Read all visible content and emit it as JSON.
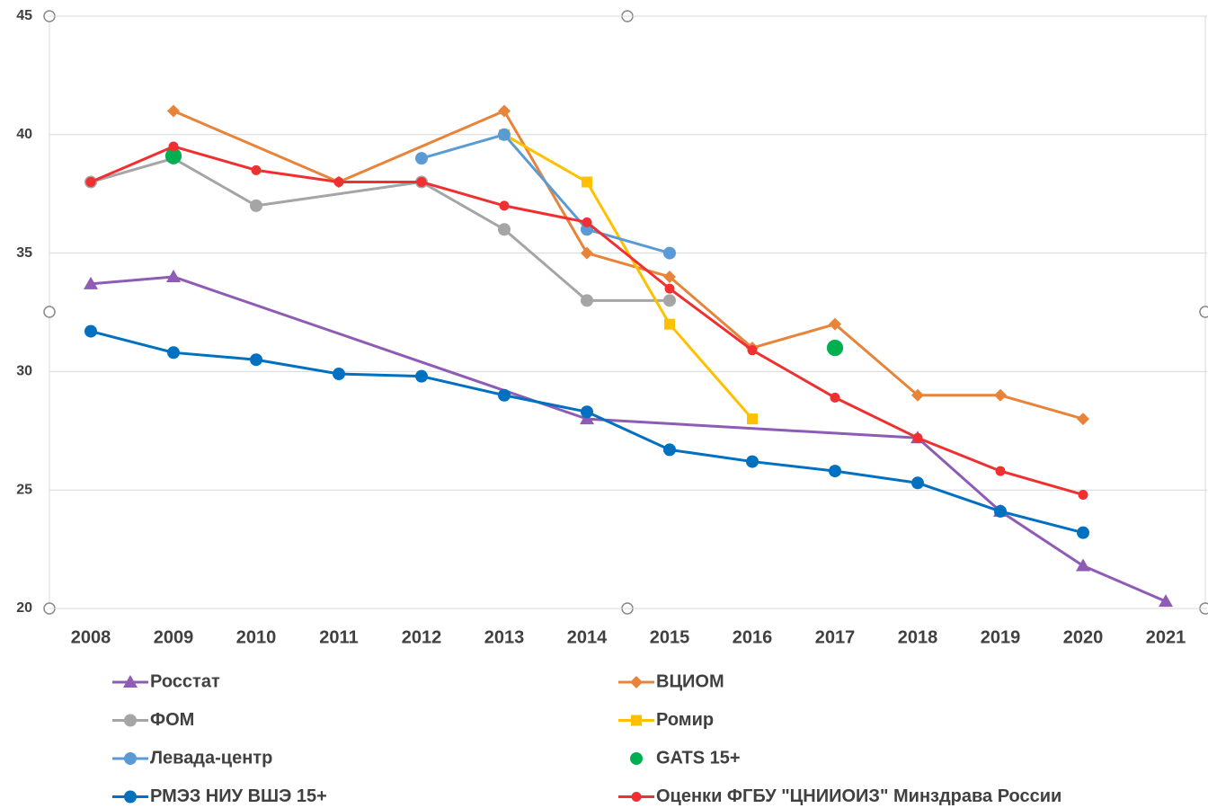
{
  "chart_data": {
    "type": "line",
    "categories": [
      "2008",
      "2009",
      "2010",
      "2011",
      "2012",
      "2013",
      "2014",
      "2015",
      "2016",
      "2017",
      "2018",
      "2019",
      "2020",
      "2021"
    ],
    "ylim": [
      20,
      45
    ],
    "yticks": [
      20,
      25,
      30,
      35,
      40,
      45
    ],
    "grid": true,
    "span_gaps": true,
    "series": [
      {
        "name": "Росстат",
        "color": "#8e5bb5",
        "marker": "triangle",
        "values": [
          33.7,
          34.0,
          null,
          null,
          null,
          null,
          28.0,
          null,
          null,
          null,
          27.2,
          24.1,
          21.8,
          20.3
        ]
      },
      {
        "name": "ВЦИОМ",
        "color": "#e8833a",
        "marker": "diamond",
        "values": [
          null,
          41,
          null,
          38,
          null,
          41,
          35,
          34,
          31,
          32,
          29,
          29,
          28,
          null
        ]
      },
      {
        "name": "ФОМ",
        "color": "#a5a5a5",
        "marker": "circle",
        "values": [
          38,
          39,
          37,
          null,
          38,
          36,
          33,
          33,
          null,
          null,
          null,
          null,
          null,
          null
        ]
      },
      {
        "name": "Ромир",
        "color": "#ffc000",
        "marker": "square",
        "values": [
          null,
          null,
          null,
          null,
          null,
          40,
          38,
          32,
          28,
          null,
          null,
          null,
          null,
          null
        ]
      },
      {
        "name": "Левада-центр",
        "color": "#5b9bd5",
        "marker": "circle",
        "values": [
          null,
          null,
          null,
          null,
          39,
          40,
          36,
          35,
          null,
          null,
          null,
          null,
          null,
          null
        ]
      },
      {
        "name": "GATS 15+",
        "color": "#00b050",
        "marker": "circle",
        "line": false,
        "values": [
          null,
          39.1,
          null,
          null,
          null,
          null,
          null,
          null,
          null,
          31,
          null,
          null,
          null,
          null
        ]
      },
      {
        "name": "РМЭЗ НИУ ВШЭ 15+",
        "color": "#0070c0",
        "marker": "circle",
        "values": [
          31.7,
          30.8,
          30.5,
          29.9,
          29.8,
          29.0,
          28.3,
          26.7,
          26.2,
          25.8,
          25.3,
          24.1,
          23.2,
          null
        ]
      },
      {
        "name": "Оценки ФГБУ \"ЦНИИОИЗ\" Минздрава России",
        "color": "#f03030",
        "marker": "small-circle",
        "values": [
          38.0,
          39.5,
          38.5,
          38.0,
          38.0,
          37.0,
          36.3,
          33.5,
          30.9,
          28.9,
          27.2,
          25.8,
          24.8,
          null
        ]
      }
    ]
  }
}
